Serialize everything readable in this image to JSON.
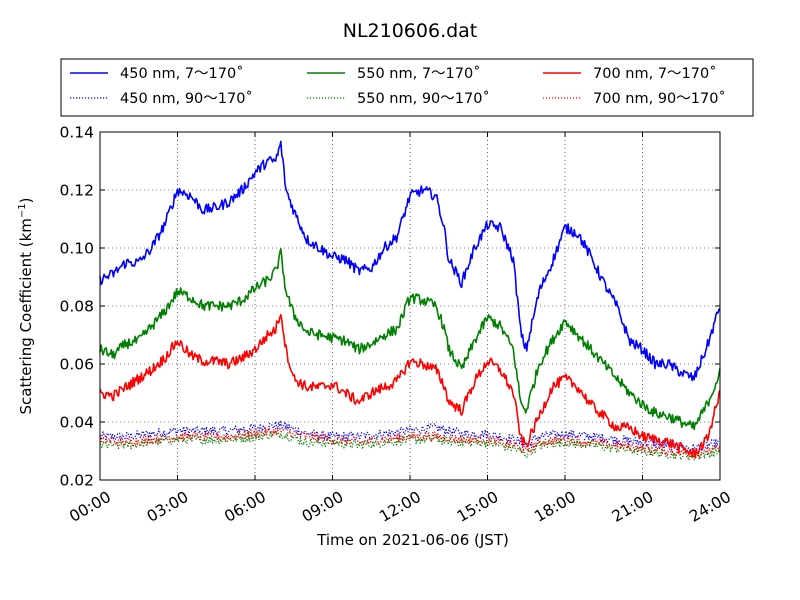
{
  "chart_data": {
    "type": "line",
    "title": "NL210606.dat",
    "xlabel": "Time on 2021-06-06 (JST)",
    "ylabel": "Scattering Coefficient (km",
    "ylabel_exponent": "−1",
    "ylabel_suffix": ")",
    "xlim": [
      "00:00",
      "24:00"
    ],
    "ylim": [
      0.02,
      0.14
    ],
    "x_ticks": [
      "00:00",
      "03:00",
      "06:00",
      "09:00",
      "12:00",
      "15:00",
      "18:00",
      "21:00",
      "24:00"
    ],
    "y_ticks": [
      "0.02",
      "0.04",
      "0.06",
      "0.08",
      "0.10",
      "0.12",
      "0.14"
    ],
    "grid": true,
    "legend_position": "top",
    "series": [
      {
        "name": "450 nm, 7～170˚",
        "color": "#0000ff",
        "style": "solid",
        "x": [
          0,
          0.5,
          1,
          1.5,
          2,
          2.5,
          3,
          3.5,
          4,
          4.5,
          5,
          5.5,
          6,
          6.5,
          6.8,
          7,
          7.2,
          7.5,
          8,
          8.5,
          9,
          9.5,
          10,
          10.5,
          11,
          11.5,
          12,
          12.5,
          13,
          13.3,
          13.5,
          14,
          14.5,
          15,
          15.5,
          16,
          16.3,
          16.5,
          17,
          17.5,
          18,
          18.5,
          19,
          19.5,
          20,
          20.5,
          21,
          21.5,
          22,
          22.5,
          23,
          23.5,
          24
        ],
        "y": [
          0.089,
          0.091,
          0.095,
          0.095,
          0.1,
          0.108,
          0.12,
          0.118,
          0.113,
          0.114,
          0.116,
          0.12,
          0.126,
          0.13,
          0.13,
          0.136,
          0.12,
          0.113,
          0.103,
          0.1,
          0.097,
          0.096,
          0.092,
          0.093,
          0.1,
          0.104,
          0.118,
          0.12,
          0.118,
          0.108,
          0.096,
          0.088,
          0.1,
          0.108,
          0.107,
          0.096,
          0.07,
          0.065,
          0.085,
          0.095,
          0.107,
          0.105,
          0.097,
          0.088,
          0.08,
          0.068,
          0.065,
          0.06,
          0.06,
          0.057,
          0.055,
          0.066,
          0.08
        ]
      },
      {
        "name": "550 nm, 7～170˚",
        "color": "#008000",
        "style": "solid",
        "x": [
          0,
          0.5,
          1,
          1.5,
          2,
          2.5,
          3,
          3.5,
          4,
          4.5,
          5,
          5.5,
          6,
          6.5,
          6.8,
          7,
          7.2,
          7.5,
          8,
          8.5,
          9,
          9.5,
          10,
          10.5,
          11,
          11.5,
          12,
          12.5,
          13,
          13.3,
          13.5,
          14,
          14.5,
          15,
          15.5,
          16,
          16.3,
          16.5,
          17,
          17.5,
          18,
          18.5,
          19,
          19.5,
          20,
          20.5,
          21,
          21.5,
          22,
          22.5,
          23,
          23.5,
          24
        ],
        "y": [
          0.065,
          0.063,
          0.067,
          0.068,
          0.073,
          0.078,
          0.085,
          0.083,
          0.08,
          0.08,
          0.08,
          0.082,
          0.086,
          0.089,
          0.092,
          0.098,
          0.085,
          0.077,
          0.071,
          0.07,
          0.069,
          0.068,
          0.065,
          0.067,
          0.07,
          0.072,
          0.083,
          0.082,
          0.08,
          0.073,
          0.065,
          0.058,
          0.068,
          0.076,
          0.073,
          0.065,
          0.046,
          0.044,
          0.06,
          0.068,
          0.075,
          0.07,
          0.065,
          0.06,
          0.055,
          0.05,
          0.046,
          0.043,
          0.042,
          0.04,
          0.038,
          0.046,
          0.057
        ]
      },
      {
        "name": "700 nm, 7～170˚",
        "color": "#ff0000",
        "style": "solid",
        "x": [
          0,
          0.5,
          1,
          1.5,
          2,
          2.5,
          3,
          3.5,
          4,
          4.5,
          5,
          5.5,
          6,
          6.5,
          6.8,
          7,
          7.2,
          7.5,
          8,
          8.5,
          9,
          9.5,
          10,
          10.5,
          11,
          11.5,
          12,
          12.5,
          13,
          13.3,
          13.5,
          14,
          14.5,
          15,
          15.5,
          16,
          16.3,
          16.5,
          17,
          17.5,
          18,
          18.5,
          19,
          19.5,
          20,
          20.5,
          21,
          21.5,
          22,
          22.5,
          23,
          23.5,
          24
        ],
        "y": [
          0.05,
          0.049,
          0.052,
          0.055,
          0.058,
          0.062,
          0.068,
          0.063,
          0.061,
          0.061,
          0.06,
          0.062,
          0.065,
          0.07,
          0.072,
          0.078,
          0.065,
          0.055,
          0.052,
          0.052,
          0.053,
          0.05,
          0.047,
          0.05,
          0.052,
          0.054,
          0.061,
          0.06,
          0.058,
          0.053,
          0.047,
          0.044,
          0.054,
          0.061,
          0.058,
          0.05,
          0.034,
          0.032,
          0.042,
          0.052,
          0.055,
          0.052,
          0.046,
          0.042,
          0.038,
          0.038,
          0.035,
          0.034,
          0.033,
          0.031,
          0.029,
          0.034,
          0.05
        ]
      },
      {
        "name": "450 nm, 90～170˚",
        "color": "#0000ff",
        "style": "dotted",
        "x": [
          0,
          1,
          2,
          3,
          4,
          5,
          6,
          7,
          8,
          9,
          10,
          11,
          12,
          13,
          14,
          15,
          16,
          16.5,
          17,
          18,
          19,
          20,
          21,
          22,
          23,
          24
        ],
        "y": [
          0.035,
          0.035,
          0.036,
          0.037,
          0.037,
          0.037,
          0.038,
          0.039,
          0.036,
          0.035,
          0.035,
          0.036,
          0.037,
          0.038,
          0.036,
          0.036,
          0.034,
          0.032,
          0.035,
          0.036,
          0.035,
          0.034,
          0.033,
          0.032,
          0.031,
          0.033
        ]
      },
      {
        "name": "550 nm, 90～170˚",
        "color": "#008000",
        "style": "dotted",
        "x": [
          0,
          1,
          2,
          3,
          4,
          5,
          6,
          7,
          8,
          9,
          10,
          11,
          12,
          13,
          14,
          15,
          16,
          16.5,
          17,
          18,
          19,
          20,
          21,
          22,
          23,
          24
        ],
        "y": [
          0.032,
          0.032,
          0.033,
          0.034,
          0.034,
          0.034,
          0.035,
          0.036,
          0.033,
          0.033,
          0.032,
          0.033,
          0.034,
          0.034,
          0.033,
          0.033,
          0.031,
          0.029,
          0.032,
          0.033,
          0.032,
          0.031,
          0.03,
          0.029,
          0.028,
          0.03
        ]
      },
      {
        "name": "700 nm, 90～170˚",
        "color": "#ff0000",
        "style": "dotted",
        "x": [
          0,
          1,
          2,
          3,
          4,
          5,
          6,
          7,
          8,
          9,
          10,
          11,
          12,
          13,
          14,
          15,
          16,
          16.5,
          17,
          18,
          19,
          20,
          21,
          22,
          23,
          24
        ],
        "y": [
          0.034,
          0.033,
          0.034,
          0.035,
          0.035,
          0.035,
          0.036,
          0.037,
          0.035,
          0.034,
          0.033,
          0.034,
          0.035,
          0.035,
          0.034,
          0.034,
          0.032,
          0.03,
          0.033,
          0.034,
          0.033,
          0.032,
          0.031,
          0.03,
          0.029,
          0.031
        ]
      }
    ]
  }
}
